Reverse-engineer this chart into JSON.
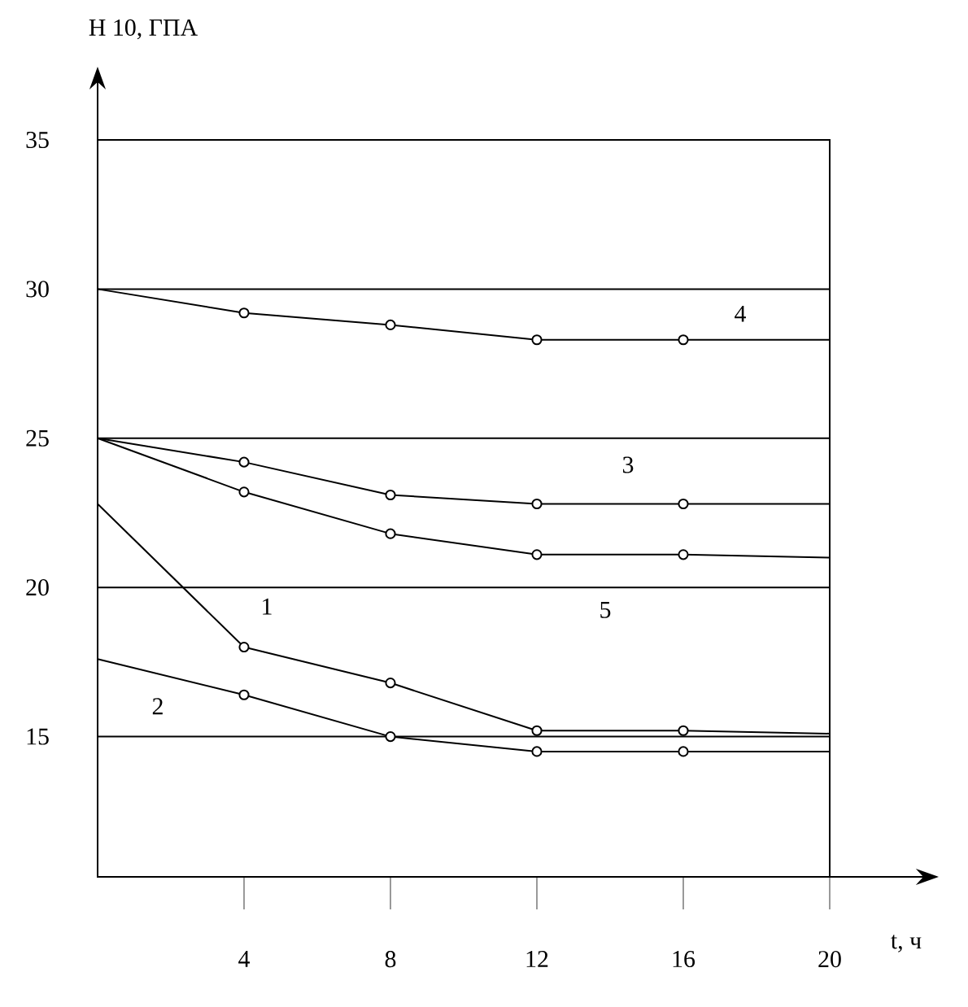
{
  "chart_data": {
    "type": "line",
    "xlabel": "t, ч",
    "ylabel": "H 10, ГПА",
    "xlim": [
      0,
      20
    ],
    "ylim": [
      10.3,
      35
    ],
    "xticks": [
      4,
      8,
      12,
      16,
      20
    ],
    "yticks": [
      15,
      20,
      25,
      30,
      35
    ],
    "grid": "y",
    "marker": "circle",
    "line_style": "solid",
    "series": [
      {
        "name": "4",
        "color": "#000000",
        "x": [
          0,
          4,
          8,
          12,
          16,
          20
        ],
        "values": [
          30,
          29.2,
          28.8,
          28.3,
          28.3,
          28.3
        ]
      },
      {
        "name": "3",
        "color": "#000000",
        "x": [
          0,
          4,
          8,
          12,
          16,
          20
        ],
        "values": [
          25,
          24.2,
          23.1,
          22.8,
          22.8,
          22.8
        ]
      },
      {
        "name": "5",
        "color": "#000000",
        "x": [
          0,
          4,
          8,
          12,
          16,
          20
        ],
        "values": [
          25,
          23.2,
          21.8,
          21.1,
          21.1,
          21.0
        ]
      },
      {
        "name": "1",
        "color": "#000000",
        "x": [
          0,
          4,
          8,
          12,
          16,
          20
        ],
        "values": [
          22.8,
          18.0,
          16.8,
          15.2,
          15.2,
          15.1
        ]
      },
      {
        "name": "2",
        "color": "#000000",
        "x": [
          0,
          4,
          8,
          12,
          16,
          20
        ],
        "values": [
          17.6,
          16.4,
          15.0,
          14.5,
          14.5,
          14.5
        ]
      }
    ]
  }
}
